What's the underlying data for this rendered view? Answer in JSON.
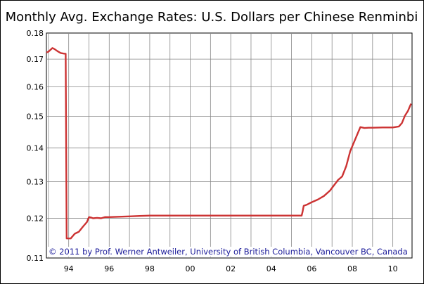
{
  "chart_data": {
    "type": "line",
    "title": "Monthly Avg. Exchange Rates: U.S. Dollars per Chinese Renminbi",
    "credit": "© 2011 by Prof. Werner Antweiler, University of British Columbia, Vancouver BC, Canada",
    "xlabel": "",
    "ylabel": "",
    "y_scale": "log",
    "ylim": [
      0.11,
      0.18
    ],
    "xlim": [
      1992.9,
      2010.95
    ],
    "y_ticks": [
      "0.11",
      "0.12",
      "0.13",
      "0.14",
      "0.15",
      "0.16",
      "0.17",
      "0.18"
    ],
    "x_ticks": [
      "94",
      "96",
      "98",
      "00",
      "02",
      "04",
      "06",
      "08",
      "10"
    ],
    "grid": true,
    "legend": "none",
    "colors": {
      "line": "#cc3333",
      "grid": "#888888",
      "credit_text": "#1a1a99"
    },
    "series": [
      {
        "values_x": [
          1992.9,
          1993.0,
          1993.1,
          1993.2,
          1993.3,
          1993.45,
          1993.6,
          1993.75,
          1993.85,
          1993.9,
          1994.0,
          1994.1,
          1994.3,
          1994.5,
          1994.7,
          1994.9,
          1995.0,
          1995.1,
          1995.2,
          1995.4,
          1995.6,
          1995.8,
          1996.0,
          1996.5,
          1997.0,
          1997.5,
          1998.0,
          2000.0,
          2002.0,
          2004.0,
          2005.5,
          2005.55,
          2005.6,
          2005.75,
          2006.0,
          2006.3,
          2006.6,
          2006.9,
          2007.1,
          2007.3,
          2007.5,
          2007.7,
          2007.9,
          2008.2,
          2008.4,
          2008.6,
          2008.8,
          2009.0,
          2009.5,
          2010.0,
          2010.3,
          2010.45,
          2010.6,
          2010.75,
          2010.9
        ],
        "values_y": [
          0.1725,
          0.1728,
          0.1735,
          0.1742,
          0.1738,
          0.173,
          0.1723,
          0.1721,
          0.172,
          0.1148,
          0.1148,
          0.1148,
          0.116,
          0.1165,
          0.1178,
          0.119,
          0.1203,
          0.1202,
          0.12,
          0.1201,
          0.12,
          0.1203,
          0.1203,
          0.1204,
          0.1205,
          0.1206,
          0.1207,
          0.1207,
          0.1207,
          0.1207,
          0.1207,
          0.1218,
          0.1233,
          0.1236,
          0.1243,
          0.125,
          0.126,
          0.1275,
          0.129,
          0.1305,
          0.1315,
          0.1345,
          0.139,
          0.1435,
          0.1465,
          0.1462,
          0.1463,
          0.1463,
          0.1464,
          0.1464,
          0.1467,
          0.1478,
          0.1502,
          0.1518,
          0.1542
        ]
      }
    ]
  }
}
